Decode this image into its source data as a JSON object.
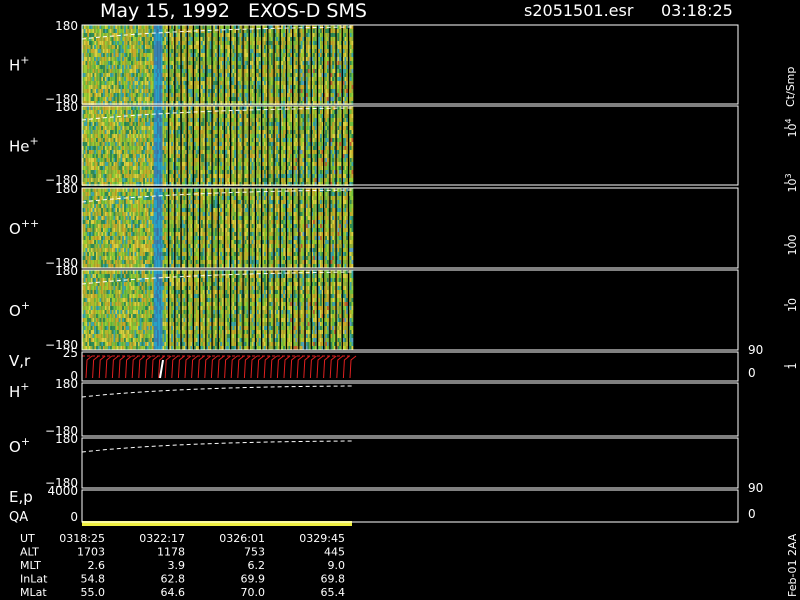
{
  "header": {
    "title": "May 15, 1992   EXOS-D SMS",
    "file": "s2051501.esr",
    "time": "03:18:25"
  },
  "panels": [
    {
      "label": "H",
      "sup": "+",
      "left_ticks": [
        "180",
        "−180"
      ]
    },
    {
      "label": "He",
      "sup": "+",
      "left_ticks": [
        "180",
        "−180"
      ]
    },
    {
      "label": "O",
      "sup": "++",
      "left_ticks": [
        "180",
        "−180"
      ]
    },
    {
      "label": "O",
      "sup": "+",
      "left_ticks": [
        "180",
        "−180"
      ]
    },
    {
      "label": "V,r",
      "left_ticks": [
        "25",
        "0"
      ],
      "right_ticks": [
        "90",
        "0"
      ]
    },
    {
      "label": "H",
      "sup": "+",
      "left_ticks": [
        "180",
        "−180"
      ]
    },
    {
      "label": "O",
      "sup": "+",
      "left_ticks": [
        "180",
        "−180"
      ]
    },
    {
      "label": "E,p",
      "label2": "QA",
      "left_ticks": [
        "4000",
        "0"
      ],
      "right_ticks": [
        "90",
        "0"
      ]
    }
  ],
  "colorbar": {
    "unit": "Ct/Smp",
    "ticks": [
      {
        "base": "10",
        "sup": "4"
      },
      {
        "base": "10",
        "sup": "3"
      },
      {
        "base": "100"
      },
      {
        "base": "10"
      },
      {
        "base": "1"
      }
    ]
  },
  "table": {
    "rows": [
      [
        "UT",
        "0318:25",
        "0322:17",
        "0326:01",
        "0329:45"
      ],
      [
        "ALT",
        "1703",
        "1178",
        "753",
        "445"
      ],
      [
        "MLT",
        "2.6",
        "3.9",
        "6.2",
        "9.0"
      ],
      [
        "InLat",
        "54.8",
        "62.8",
        "69.9",
        "69.8"
      ],
      [
        "MLat",
        "55.0",
        "64.6",
        "70.0",
        "65.4"
      ]
    ]
  },
  "footer": "Feb-01 2AA"
}
